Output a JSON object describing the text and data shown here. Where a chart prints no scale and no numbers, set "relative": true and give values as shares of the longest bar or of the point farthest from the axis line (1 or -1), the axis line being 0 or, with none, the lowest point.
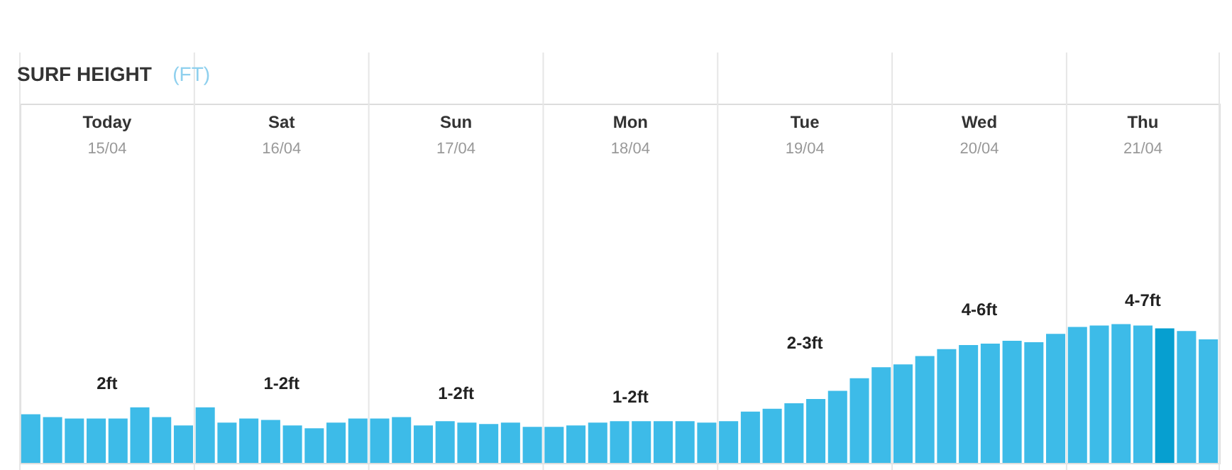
{
  "chart_data": {
    "type": "bar",
    "title": "SURF HEIGHT",
    "subtitle": "(FT)",
    "relative": true,
    "grid": "x",
    "categories": [
      null,
      null,
      null,
      null,
      null,
      null,
      null,
      null,
      null,
      null,
      null,
      null,
      null,
      null,
      null,
      null,
      null,
      null,
      null,
      null,
      null,
      null,
      null,
      null,
      null,
      null,
      null,
      null,
      null,
      null,
      null,
      null,
      null,
      null,
      null,
      null,
      null,
      null,
      null,
      null,
      null,
      null,
      null,
      null,
      null,
      null,
      null,
      null,
      null,
      null,
      null,
      null,
      null,
      null,
      null
    ],
    "values": [
      0.35,
      0.33,
      0.32,
      0.32,
      0.32,
      0.4,
      0.33,
      0.27,
      0.4,
      0.29,
      0.32,
      0.31,
      0.27,
      0.25,
      0.29,
      0.32,
      0.32,
      0.33,
      0.27,
      0.3,
      0.29,
      0.28,
      0.29,
      0.26,
      0.26,
      0.27,
      0.29,
      0.3,
      0.3,
      0.3,
      0.3,
      0.29,
      0.3,
      0.37,
      0.39,
      0.43,
      0.46,
      0.52,
      0.61,
      0.69,
      0.71,
      0.77,
      0.82,
      0.85,
      0.86,
      0.88,
      0.87,
      0.93,
      0.98,
      0.99,
      1.0,
      0.99,
      0.97,
      0.95,
      0.89
    ],
    "colors": [
      "#3dbbe8",
      "#3dbbe8",
      "#3dbbe8",
      "#3dbbe8",
      "#3dbbe8",
      "#3dbbe8",
      "#3dbbe8",
      "#3dbbe8",
      "#3dbbe8",
      "#3dbbe8",
      "#3dbbe8",
      "#3dbbe8",
      "#3dbbe8",
      "#3dbbe8",
      "#3dbbe8",
      "#3dbbe8",
      "#3dbbe8",
      "#3dbbe8",
      "#3dbbe8",
      "#3dbbe8",
      "#3dbbe8",
      "#3dbbe8",
      "#3dbbe8",
      "#3dbbe8",
      "#3dbbe8",
      "#3dbbe8",
      "#3dbbe8",
      "#3dbbe8",
      "#3dbbe8",
      "#3dbbe8",
      "#3dbbe8",
      "#3dbbe8",
      "#3dbbe8",
      "#3dbbe8",
      "#3dbbe8",
      "#3dbbe8",
      "#3dbbe8",
      "#3dbbe8",
      "#3dbbe8",
      "#3dbbe8",
      "#3dbbe8",
      "#3dbbe8",
      "#3dbbe8",
      "#3dbbe8",
      "#3dbbe8",
      "#3dbbe8",
      "#3dbbe8",
      "#3dbbe8",
      "#3dbbe8",
      "#3dbbe8",
      "#3dbbe8",
      "#3dbbe8",
      "#069fd0",
      "#3dbbe8",
      "#3dbbe8"
    ],
    "annotations": [
      {
        "text": "Today"
      },
      {
        "text": "15/04"
      },
      {
        "text": "2ft"
      },
      {
        "text": "Sat"
      },
      {
        "text": "16/04"
      },
      {
        "text": "1-2ft"
      },
      {
        "text": "Sun"
      },
      {
        "text": "17/04"
      },
      {
        "text": "1-2ft"
      },
      {
        "text": "Mon"
      },
      {
        "text": "18/04"
      },
      {
        "text": "1-2ft"
      },
      {
        "text": "Tue"
      },
      {
        "text": "19/04"
      },
      {
        "text": "2-3ft"
      },
      {
        "text": "Wed"
      },
      {
        "text": "20/04"
      },
      {
        "text": "4-6ft"
      },
      {
        "text": "Thu"
      },
      {
        "text": "21/04"
      },
      {
        "text": "4-7ft"
      }
    ]
  }
}
